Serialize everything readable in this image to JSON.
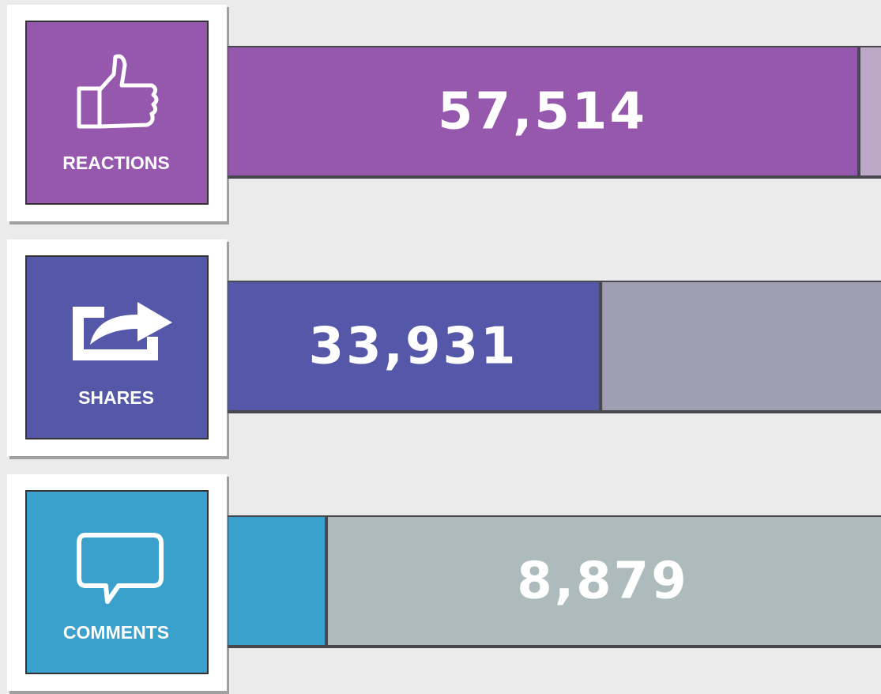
{
  "chart_data": {
    "type": "bar",
    "categories": [
      "REACTIONS",
      "SHARES",
      "COMMENTS"
    ],
    "values": [
      57514,
      33931,
      8879
    ],
    "value_labels": [
      "57,514",
      "33,931",
      "8,879"
    ],
    "colors": [
      "#9558ad",
      "#5558a8",
      "#3aa0cc"
    ],
    "track_colors": [
      "#bca9c7",
      "#a09fb1",
      "#aebbbd"
    ]
  }
}
